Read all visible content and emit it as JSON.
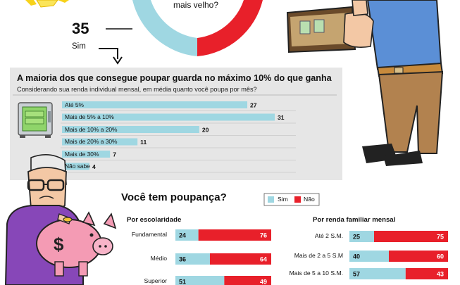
{
  "colors": {
    "cyan": "#9fd7e2",
    "red": "#e8202a",
    "panel": "#e6e6e6",
    "dark": "#222222"
  },
  "top": {
    "question_fragment": "mais velho?",
    "count": "35",
    "count_label": "Sim"
  },
  "chart_data": [
    {
      "type": "bar",
      "title": "A maioria dos que consegue poupar guarda no máximo 10% do que ganha",
      "subtitle": "Considerando sua renda individual mensal, em média quanto você poupa por mês?",
      "categories": [
        "Até 5%",
        "Mais de 5% a 10%",
        "Mais de 10% a 20%",
        "Mais de 20% a 30%",
        "Mais de 30%",
        "Não sabe"
      ],
      "values": [
        27,
        31,
        20,
        11,
        7,
        4
      ],
      "xlim": [
        0,
        31
      ]
    },
    {
      "type": "bar",
      "stacked": true,
      "title": "Você tem poupança?",
      "subtitle": "Por escolaridade",
      "categories": [
        "Fundamental",
        "Médio",
        "Superior"
      ],
      "series": [
        {
          "name": "Sim",
          "values": [
            24,
            36,
            51
          ]
        },
        {
          "name": "Não",
          "values": [
            76,
            64,
            49
          ]
        }
      ]
    },
    {
      "type": "bar",
      "stacked": true,
      "title": "Você tem poupança?",
      "subtitle": "Por renda familiar mensal",
      "categories": [
        "Até 2 S.M.",
        "Mais de 2 a 5 S.M",
        "Mais de 5 a 10 S.M."
      ],
      "series": [
        {
          "name": "Sim",
          "values": [
            25,
            40,
            57
          ]
        },
        {
          "name": "Não",
          "values": [
            75,
            60,
            43
          ]
        }
      ]
    }
  ],
  "survey": {
    "title": "A maioria dos que consegue poupar guarda no máximo 10% do que ganha",
    "subtitle": "Considerando sua renda individual mensal, em média quanto você poupa por mês?",
    "rows": [
      {
        "label": "Até 5%",
        "value": "27"
      },
      {
        "label": "Mais de 5% a 10%",
        "value": "31"
      },
      {
        "label": "Mais de 10% a 20%",
        "value": "20"
      },
      {
        "label": "Mais de 20% a 30%",
        "value": "11"
      },
      {
        "label": "Mais de 30%",
        "value": "7"
      },
      {
        "label": "Não sabe",
        "value": "4"
      }
    ]
  },
  "poupanca": {
    "title": "Você tem poupança?",
    "legend_sim": "Sim",
    "legend_nao": "Não",
    "esc_title": "Por escolaridade",
    "renda_title": "Por renda familiar mensal",
    "esc_rows": [
      {
        "label": "Fundamental",
        "sim": "24",
        "nao": "76"
      },
      {
        "label": "Médio",
        "sim": "36",
        "nao": "64"
      },
      {
        "label": "Superior",
        "sim": "51",
        "nao": "49"
      }
    ],
    "renda_rows": [
      {
        "label": "Até 2 S.M.",
        "sim": "25",
        "nao": "75"
      },
      {
        "label": "Mais de 2 a 5 S.M",
        "sim": "40",
        "nao": "60"
      },
      {
        "label": "Mais de 5 a 10 S.M.",
        "sim": "57",
        "nao": "43"
      }
    ]
  }
}
